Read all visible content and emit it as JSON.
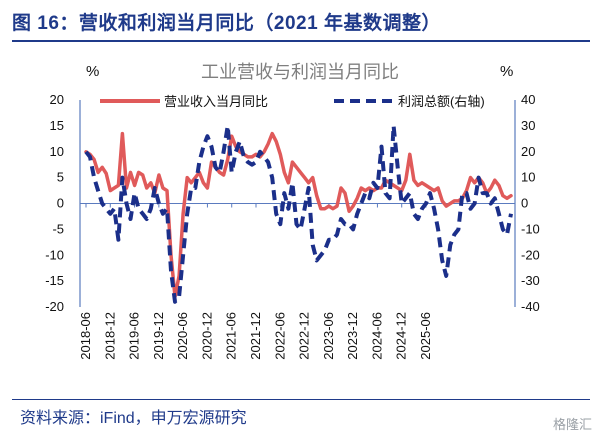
{
  "figure_title": "图 16：营收和利润当月同比（2021 年基数调整）",
  "source": "资料来源：iFind，申万宏源研究",
  "watermark": "格隆汇",
  "colors": {
    "revenue": "#e05a5a",
    "profit": "#1b2f8a",
    "title_blue": "#1f3a8a",
    "axis": "#5b7bbf"
  },
  "chart_data": {
    "type": "line",
    "title": "工业营收与利润当月同比",
    "left_unit": "%",
    "right_unit": "%",
    "legend": [
      "营业收入当月同比",
      "利润总额(右轴)"
    ],
    "legend_position": "top",
    "grid": false,
    "y_left": {
      "min": -20,
      "max": 20,
      "ticks": [
        20,
        15,
        10,
        5,
        0,
        -5,
        -10,
        -15,
        -20
      ]
    },
    "y_right": {
      "min": -40,
      "max": 40,
      "ticks": [
        40,
        30,
        20,
        10,
        0,
        -10,
        -20,
        -30,
        -40
      ]
    },
    "x_tick_labels": [
      "2018-06",
      "2018-12",
      "2019-06",
      "2019-12",
      "2020-06",
      "2020-12",
      "2021-06",
      "2021-12",
      "2022-06",
      "2022-12",
      "2023-06",
      "2023-12",
      "2024-06",
      "2024-12",
      "2025-06"
    ],
    "x_start": "2018-06",
    "series": [
      {
        "name": "营业收入当月同比",
        "axis": "left",
        "style": "solid",
        "values": [
          10,
          9.5,
          8.5,
          6,
          7,
          5.8,
          2.5,
          3.0,
          3.5,
          13.5,
          3.0,
          6.0,
          3.5,
          6.0,
          5.5,
          3.0,
          4.0,
          2.0,
          5.5,
          3.0,
          2.5,
          -10,
          -18,
          -14,
          -2,
          5,
          4,
          5,
          6,
          4,
          3,
          8,
          7,
          6,
          5.5,
          8.5,
          13,
          11,
          10,
          9.5,
          9,
          9,
          9.5,
          9.0,
          10,
          11.5,
          13.5,
          12.0,
          9.5,
          6.0,
          4.0,
          8.0,
          7.0,
          6.0,
          5.0,
          4.0,
          5.0,
          1.5,
          -1.0,
          -1.0,
          -0.5,
          -1.0,
          -0.5,
          3.0,
          2.0,
          -1.5,
          -0.5,
          1.0,
          3.0,
          2.5,
          3.0,
          2.5,
          3.0,
          3.0,
          4.5,
          4.0,
          3.5,
          3.0,
          2.5,
          4.5,
          9.5,
          4.5,
          3.5,
          4.0,
          3.5,
          3.0,
          2.5,
          3.0,
          0.5,
          -0.5,
          0.0,
          0.5,
          0.5,
          1.0,
          2.5,
          5.0,
          4.0,
          5.0,
          4.0,
          2.0,
          3.0,
          4.5,
          3.5,
          1.5,
          1.0,
          1.5
        ]
      },
      {
        "name": "利润总额(右轴)",
        "axis": "right",
        "style": "dashed",
        "values": [
          20,
          18,
          10,
          5,
          0,
          -2,
          -4,
          -2,
          -14,
          10,
          0,
          -6,
          4,
          -2,
          -4,
          -6,
          -2,
          6,
          0,
          -4,
          -2,
          -26,
          -38,
          -36,
          -20,
          -4,
          6,
          6,
          16,
          22,
          26,
          22,
          14,
          12,
          20,
          30,
          12,
          20,
          24,
          18,
          16,
          15,
          16,
          20,
          18,
          16,
          10,
          -4,
          -8,
          4,
          -2,
          8,
          -8,
          -10,
          -2,
          6,
          -16,
          -22,
          -20,
          -18,
          -14,
          -14,
          -12,
          -6,
          -8,
          -8,
          -10,
          -4,
          0,
          4,
          2,
          8,
          6,
          22,
          4,
          2,
          30,
          14,
          0,
          2,
          4,
          -4,
          -6,
          -2,
          0,
          4,
          -2,
          -10,
          -22,
          -28,
          -16,
          -12,
          -10,
          4,
          4,
          -2,
          0,
          10,
          4,
          4,
          0,
          2,
          -4,
          -10,
          -12,
          -4
        ]
      }
    ]
  }
}
